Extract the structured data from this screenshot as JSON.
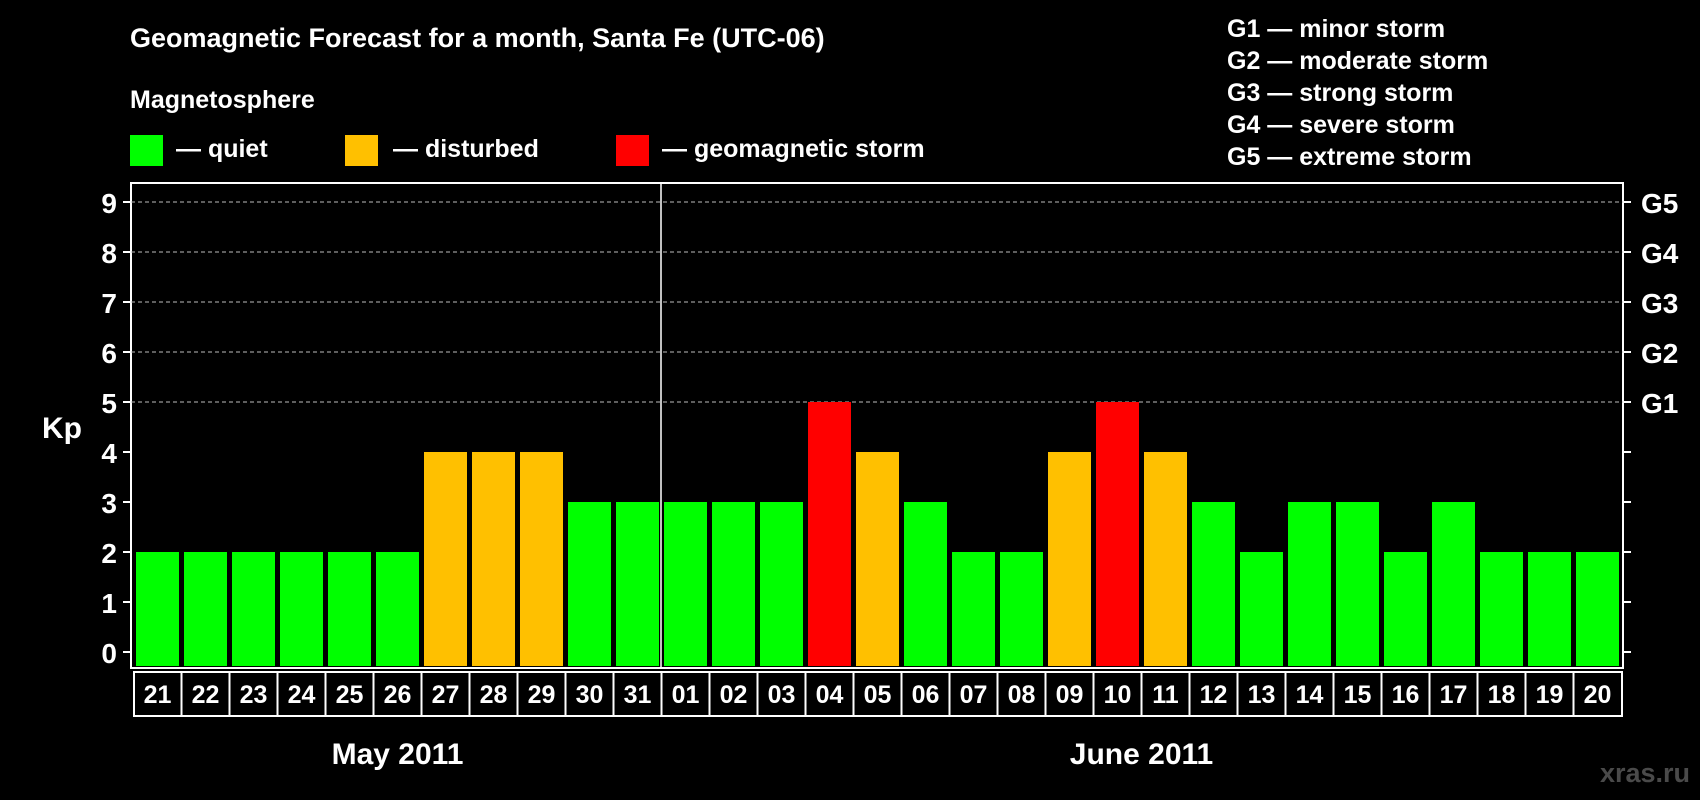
{
  "chart_data": {
    "type": "bar",
    "title": "Geomagnetic Forecast for a month, Santa Fe (UTC-06)",
    "legend_title": "Magnetosphere",
    "legend": [
      {
        "label": "— quiet",
        "color": "#00ff00"
      },
      {
        "label": "— disturbed",
        "color": "#ffc000"
      },
      {
        "label": "— geomagnetic storm",
        "color": "#ff0000"
      }
    ],
    "storm_scale": [
      "G1 — minor storm",
      "G2 — moderate storm",
      "G3 — strong storm",
      "G4 — severe storm",
      "G5 — extreme storm"
    ],
    "ylabel": "Kp",
    "ylim": [
      0,
      9
    ],
    "yticks": [
      "0",
      "1",
      "2",
      "3",
      "4",
      "5",
      "6",
      "7",
      "8",
      "9"
    ],
    "right_ticks": [
      {
        "value": 5,
        "label": "G1"
      },
      {
        "value": 6,
        "label": "G2"
      },
      {
        "value": 7,
        "label": "G3"
      },
      {
        "value": 8,
        "label": "G4"
      },
      {
        "value": 9,
        "label": "G5"
      }
    ],
    "grid_dashed_at": [
      5,
      6,
      7,
      8,
      9
    ],
    "categories": [
      "21",
      "22",
      "23",
      "24",
      "25",
      "26",
      "27",
      "28",
      "29",
      "30",
      "31",
      "01",
      "02",
      "03",
      "04",
      "05",
      "06",
      "07",
      "08",
      "09",
      "10",
      "11",
      "12",
      "13",
      "14",
      "15",
      "16",
      "17",
      "18",
      "19",
      "20"
    ],
    "values": [
      2,
      2,
      2,
      2,
      2,
      2,
      4,
      4,
      4,
      3,
      3,
      3,
      3,
      3,
      5,
      4,
      3,
      2,
      2,
      4,
      5,
      4,
      3,
      2,
      3,
      3,
      2,
      3,
      2,
      2,
      2
    ],
    "colors": {
      "quiet": "#00ff00",
      "disturbed": "#ffc000",
      "storm": "#ff0000"
    },
    "months": [
      {
        "label": "May 2011",
        "start": 0,
        "count": 11
      },
      {
        "label": "June 2011",
        "start": 11,
        "count": 20
      }
    ]
  },
  "watermark": "xras.ru"
}
